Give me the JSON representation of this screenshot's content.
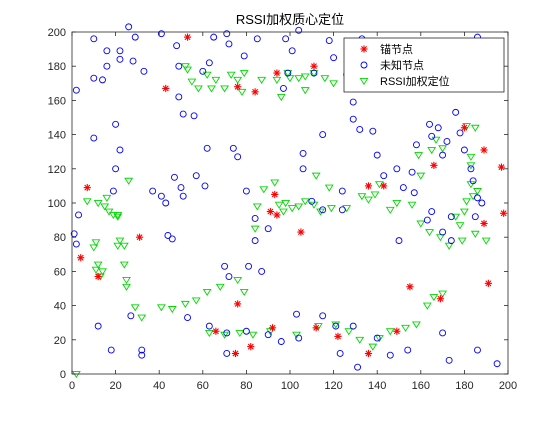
{
  "chart_data": {
    "type": "scatter",
    "title": "RSSI加权质心定位",
    "xlabel": "",
    "ylabel": "",
    "xlim": [
      0,
      200
    ],
    "ylim": [
      0,
      200
    ],
    "xticks": [
      0,
      20,
      40,
      60,
      80,
      100,
      120,
      140,
      160,
      180,
      200
    ],
    "yticks": [
      0,
      20,
      40,
      60,
      80,
      100,
      120,
      140,
      160,
      180,
      200
    ],
    "grid": false,
    "legend_position": "top-right",
    "series": [
      {
        "name": "锚节点",
        "marker": "asterisk",
        "color": "#ff0000",
        "points": [
          [
            53,
            197
          ],
          [
            43,
            167
          ],
          [
            76,
            168
          ],
          [
            84,
            165
          ],
          [
            94,
            176
          ],
          [
            111,
            180
          ],
          [
            7,
            109
          ],
          [
            4,
            68
          ],
          [
            12,
            57
          ],
          [
            31,
            80
          ],
          [
            93,
            105
          ],
          [
            91,
            95
          ],
          [
            94,
            93
          ],
          [
            105,
            83
          ],
          [
            136,
            110
          ],
          [
            143,
            110
          ],
          [
            166,
            122
          ],
          [
            180,
            144
          ],
          [
            189,
            131
          ],
          [
            197,
            121
          ],
          [
            198,
            94
          ],
          [
            189,
            88
          ],
          [
            191,
            53
          ],
          [
            155,
            51
          ],
          [
            169,
            44
          ],
          [
            76,
            41
          ],
          [
            66,
            25
          ],
          [
            92,
            27
          ],
          [
            112,
            27
          ],
          [
            122,
            22
          ],
          [
            136,
            12
          ],
          [
            149,
            25
          ],
          [
            75,
            12
          ],
          [
            82,
            16
          ]
        ]
      },
      {
        "name": "未知节点",
        "marker": "circle",
        "color": "#0000ff",
        "points": [
          [
            2,
            166
          ],
          [
            10,
            196
          ],
          [
            10,
            173
          ],
          [
            14,
            172
          ],
          [
            16,
            180
          ],
          [
            16,
            189
          ],
          [
            22,
            189
          ],
          [
            22,
            184
          ],
          [
            28,
            183
          ],
          [
            29,
            197
          ],
          [
            33,
            177
          ],
          [
            26,
            203
          ],
          [
            41,
            199
          ],
          [
            48,
            192
          ],
          [
            49,
            180
          ],
          [
            49,
            162
          ],
          [
            51,
            152
          ],
          [
            56,
            151
          ],
          [
            60,
            177
          ],
          [
            63,
            182
          ],
          [
            65,
            197
          ],
          [
            71,
            199
          ],
          [
            72,
            193
          ],
          [
            79,
            186
          ],
          [
            85,
            196
          ],
          [
            97,
            167
          ],
          [
            99,
            176
          ],
          [
            101,
            189
          ],
          [
            98,
            196
          ],
          [
            104,
            201
          ],
          [
            111,
            176
          ],
          [
            120,
            185
          ],
          [
            118,
            195
          ],
          [
            126,
            175
          ],
          [
            129,
            159
          ],
          [
            133,
            196
          ],
          [
            142,
            193
          ],
          [
            146,
            181
          ],
          [
            159,
            192
          ],
          [
            163,
            175
          ],
          [
            173,
            173
          ],
          [
            181,
            178
          ],
          [
            186,
            197
          ],
          [
            3,
            93
          ],
          [
            1,
            82
          ],
          [
            2,
            76
          ],
          [
            10,
            138
          ],
          [
            20,
            146
          ],
          [
            20,
            120
          ],
          [
            19,
            107
          ],
          [
            22,
            131
          ],
          [
            37,
            107
          ],
          [
            41,
            104
          ],
          [
            43,
            100
          ],
          [
            44,
            81
          ],
          [
            46,
            79
          ],
          [
            47,
            115
          ],
          [
            50,
            109
          ],
          [
            51,
            104
          ],
          [
            57,
            116
          ],
          [
            61,
            110
          ],
          [
            62,
            132
          ],
          [
            74,
            132
          ],
          [
            76,
            127
          ],
          [
            80,
            107
          ],
          [
            84,
            91
          ],
          [
            90,
            85
          ],
          [
            84,
            78
          ],
          [
            81,
            63
          ],
          [
            70,
            63
          ],
          [
            72,
            57
          ],
          [
            87,
            60
          ],
          [
            106,
            129
          ],
          [
            106,
            120
          ],
          [
            115,
            140
          ],
          [
            110,
            101
          ],
          [
            115,
            96
          ],
          [
            124,
            96
          ],
          [
            124,
            107
          ],
          [
            129,
            149
          ],
          [
            132,
            143
          ],
          [
            138,
            142
          ],
          [
            140,
            128
          ],
          [
            143,
            116
          ],
          [
            149,
            120
          ],
          [
            150,
            78
          ],
          [
            152,
            109
          ],
          [
            156,
            118
          ],
          [
            158,
            134
          ],
          [
            164,
            146
          ],
          [
            165,
            139
          ],
          [
            168,
            144
          ],
          [
            170,
            128
          ],
          [
            172,
            136
          ],
          [
            176,
            153
          ],
          [
            178,
            141
          ],
          [
            180,
            131
          ],
          [
            183,
            120
          ],
          [
            184,
            113
          ],
          [
            186,
            103
          ],
          [
            188,
            100
          ],
          [
            185,
            92
          ],
          [
            174,
            92
          ],
          [
            170,
            83
          ],
          [
            163,
            90
          ],
          [
            157,
            106
          ],
          [
            165,
            95
          ],
          [
            174,
            78
          ],
          [
            12,
            28
          ],
          [
            18,
            14
          ],
          [
            27,
            34
          ],
          [
            32,
            14
          ],
          [
            32,
            11
          ],
          [
            53,
            33
          ],
          [
            63,
            28
          ],
          [
            71,
            24
          ],
          [
            71,
            12
          ],
          [
            80,
            25
          ],
          [
            90,
            23
          ],
          [
            96,
            19
          ],
          [
            103,
            35
          ],
          [
            104,
            21
          ],
          [
            115,
            34
          ],
          [
            121,
            28
          ],
          [
            123,
            12
          ],
          [
            129,
            28
          ],
          [
            131,
            4
          ],
          [
            140,
            21
          ],
          [
            146,
            11
          ],
          [
            154,
            14
          ],
          [
            170,
            24
          ],
          [
            173,
            8
          ],
          [
            186,
            14
          ],
          [
            195,
            6
          ]
        ]
      },
      {
        "name": "RSSI加权定位",
        "marker": "triangle-down",
        "color": "#00d800",
        "points": [
          [
            2,
            0
          ],
          [
            7,
            101
          ],
          [
            12,
            100
          ],
          [
            15,
            98
          ],
          [
            16,
            103
          ],
          [
            17,
            95
          ],
          [
            19,
            93
          ],
          [
            21,
            92
          ],
          [
            11,
            77
          ],
          [
            10,
            74
          ],
          [
            12,
            64
          ],
          [
            14,
            60
          ],
          [
            13,
            57
          ],
          [
            11,
            61
          ],
          [
            22,
            78
          ],
          [
            21,
            75
          ],
          [
            24,
            75
          ],
          [
            25,
            55
          ],
          [
            25,
            51
          ],
          [
            24,
            64
          ],
          [
            29,
            39
          ],
          [
            32,
            33
          ],
          [
            41,
            39
          ],
          [
            46,
            38
          ],
          [
            52,
            41
          ],
          [
            57,
            43
          ],
          [
            62,
            48
          ],
          [
            68,
            51
          ],
          [
            76,
            55
          ],
          [
            79,
            48
          ],
          [
            63,
            24
          ],
          [
            70,
            23
          ],
          [
            77,
            24
          ],
          [
            83,
            23
          ],
          [
            91,
            25
          ],
          [
            103,
            23
          ],
          [
            113,
            28
          ],
          [
            121,
            29
          ],
          [
            127,
            25
          ],
          [
            132,
            20
          ],
          [
            138,
            16
          ],
          [
            141,
            21
          ],
          [
            146,
            25
          ],
          [
            153,
            27
          ],
          [
            158,
            29
          ],
          [
            163,
            40
          ],
          [
            166,
            45
          ],
          [
            170,
            47
          ],
          [
            98,
            100
          ],
          [
            101,
            97
          ],
          [
            104,
            98
          ],
          [
            107,
            101
          ],
          [
            111,
            99
          ],
          [
            114,
            95
          ],
          [
            119,
            97
          ],
          [
            126,
            97
          ],
          [
            93,
            112
          ],
          [
            88,
            108
          ],
          [
            85,
            98
          ],
          [
            84,
            85
          ],
          [
            95,
            99
          ],
          [
            97,
            95
          ],
          [
            78,
            165
          ],
          [
            76,
            172
          ],
          [
            73,
            175
          ],
          [
            87,
            172
          ],
          [
            52,
            180
          ],
          [
            53,
            178
          ],
          [
            55,
            171
          ],
          [
            58,
            167
          ],
          [
            64,
            167
          ],
          [
            70,
            167
          ],
          [
            62,
            175
          ],
          [
            66,
            172
          ],
          [
            79,
            176
          ],
          [
            100,
            173
          ],
          [
            104,
            173
          ],
          [
            107,
            174
          ],
          [
            111,
            176
          ],
          [
            116,
            173
          ],
          [
            120,
            170
          ],
          [
            107,
            166
          ],
          [
            96,
            162
          ],
          [
            112,
            116
          ],
          [
            118,
            109
          ],
          [
            133,
            104
          ],
          [
            136,
            102
          ],
          [
            139,
            105
          ],
          [
            141,
            111
          ],
          [
            146,
            96
          ],
          [
            149,
            100
          ],
          [
            156,
            99
          ],
          [
            160,
            88
          ],
          [
            164,
            83
          ],
          [
            169,
            80
          ],
          [
            173,
            75
          ],
          [
            179,
            78
          ],
          [
            185,
            82
          ],
          [
            190,
            78
          ],
          [
            181,
            101
          ],
          [
            184,
            104
          ],
          [
            186,
            107
          ],
          [
            183,
            111
          ],
          [
            180,
            95
          ],
          [
            176,
            92
          ],
          [
            178,
            87
          ],
          [
            183,
            122
          ],
          [
            181,
            145
          ],
          [
            185,
            144
          ],
          [
            183,
            127
          ],
          [
            170,
            132
          ],
          [
            167,
            137
          ],
          [
            165,
            131
          ],
          [
            159,
            128
          ],
          [
            160,
            116
          ],
          [
            26,
            113
          ],
          [
            21,
            93
          ],
          [
            99,
            176
          ],
          [
            94,
            172
          ]
        ]
      }
    ]
  }
}
